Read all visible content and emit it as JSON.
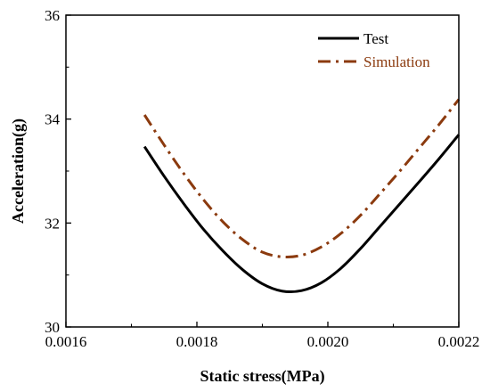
{
  "chart_data": {
    "type": "line",
    "title": "",
    "xlabel": "Static stress(MPa)",
    "ylabel": "Acceleration(g)",
    "xlim": [
      0.0016,
      0.0022
    ],
    "ylim": [
      30,
      36
    ],
    "x_ticks": [
      "0.0016",
      "0.0018",
      "0.0020",
      "0.0022"
    ],
    "y_ticks": [
      "30",
      "32",
      "34",
      "36"
    ],
    "grid": false,
    "legend_position": "top-right",
    "series": [
      {
        "name": "Test",
        "color": "#000000",
        "line_style": "solid",
        "x": [
          0.00172,
          0.00175,
          0.00178,
          0.00181,
          0.00184,
          0.00187,
          0.0019,
          0.00193,
          0.00196,
          0.00199,
          0.00202,
          0.00205,
          0.00208,
          0.00211,
          0.00214,
          0.00217,
          0.0022
        ],
        "y": [
          33.47,
          32.9,
          32.37,
          31.88,
          31.46,
          31.1,
          30.83,
          30.69,
          30.7,
          30.85,
          31.13,
          31.51,
          31.94,
          32.37,
          32.8,
          33.24,
          33.7
        ]
      },
      {
        "name": "Simulation",
        "color": "#8B3A0E",
        "line_style": "dash-dot",
        "x": [
          0.00172,
          0.00175,
          0.00178,
          0.00181,
          0.00184,
          0.00187,
          0.0019,
          0.00193,
          0.00196,
          0.00199,
          0.00202,
          0.00205,
          0.00208,
          0.00211,
          0.00214,
          0.00217,
          0.0022
        ],
        "y": [
          34.08,
          33.5,
          32.95,
          32.45,
          32.02,
          31.68,
          31.44,
          31.35,
          31.38,
          31.54,
          31.8,
          32.15,
          32.57,
          33.0,
          33.45,
          33.9,
          34.38
        ]
      }
    ]
  }
}
